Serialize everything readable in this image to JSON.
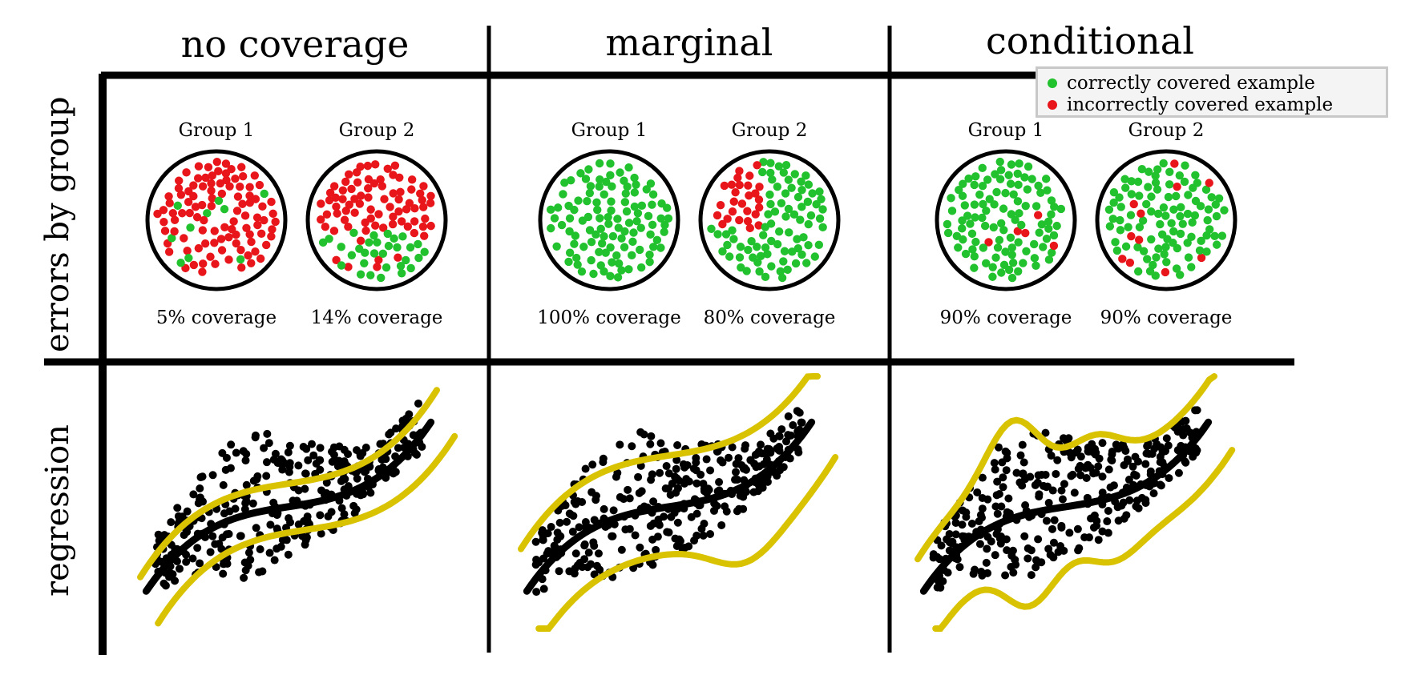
{
  "columns": [
    {
      "title": "no coverage",
      "groups": [
        {
          "label": "Group 1",
          "coverage": "5% coverage",
          "coverage_value": 0.05
        },
        {
          "label": "Group 2",
          "coverage": "14% coverage",
          "coverage_value": 0.14
        }
      ]
    },
    {
      "title": "marginal",
      "groups": [
        {
          "label": "Group 1",
          "coverage": "100% coverage",
          "coverage_value": 1.0
        },
        {
          "label": "Group 2",
          "coverage": "80% coverage",
          "coverage_value": 0.8
        }
      ]
    },
    {
      "title": "conditional",
      "groups": [
        {
          "label": "Group 1",
          "coverage": "90% coverage",
          "coverage_value": 0.9
        },
        {
          "label": "Group 2",
          "coverage": "90% coverage",
          "coverage_value": 0.9
        }
      ]
    }
  ],
  "rows": {
    "errors": "errors by group",
    "regression": "regression"
  },
  "legend": {
    "correct": "correctly covered example",
    "incorrect": "incorrectly covered example"
  },
  "colors": {
    "correct": "#22c12e",
    "incorrect": "#e8151b",
    "band": "#d9c300",
    "line": "#000000"
  }
}
